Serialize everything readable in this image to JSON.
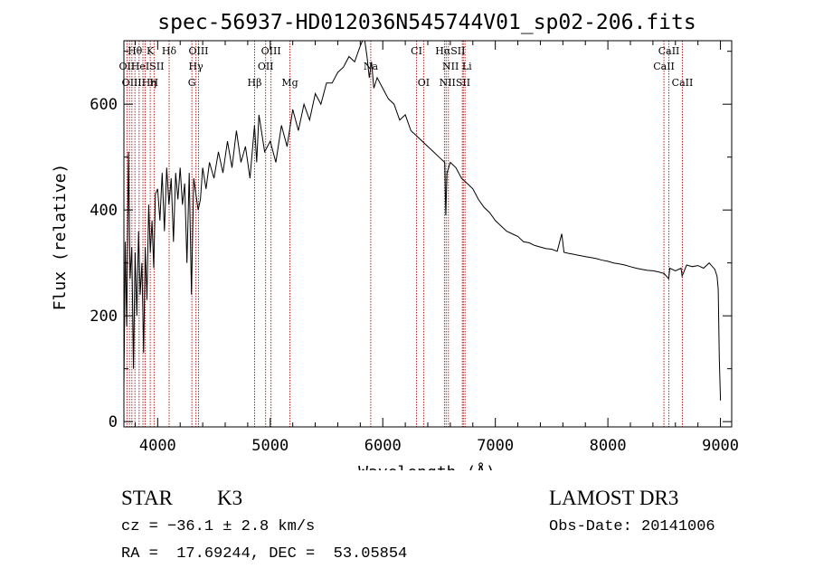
{
  "chart_data": {
    "type": "line",
    "title": "spec-56937-HD012036N545744V01_sp02-206.fits",
    "xlabel": "Wavelength (Å)",
    "ylabel": "Flux (relative)",
    "xlim": [
      3700,
      9100
    ],
    "ylim": [
      -10,
      720
    ],
    "xticks": [
      4000,
      5000,
      6000,
      7000,
      8000,
      9000
    ],
    "xtick_labels": [
      "4000",
      "5000",
      "6000",
      "7000",
      "8000",
      "9000"
    ],
    "yticks": [
      0,
      200,
      400,
      600
    ],
    "ytick_labels": [
      "0",
      "200",
      "400",
      "600"
    ],
    "grid": false,
    "series": [
      {
        "name": "spectrum",
        "x": [
          3700,
          3712,
          3725,
          3740,
          3755,
          3770,
          3785,
          3800,
          3815,
          3830,
          3845,
          3860,
          3875,
          3890,
          3905,
          3920,
          3935,
          3950,
          3965,
          3980,
          4000,
          4020,
          4040,
          4060,
          4080,
          4100,
          4120,
          4140,
          4160,
          4180,
          4200,
          4220,
          4240,
          4260,
          4280,
          4300,
          4320,
          4340,
          4360,
          4380,
          4400,
          4430,
          4460,
          4500,
          4540,
          4580,
          4620,
          4660,
          4700,
          4740,
          4780,
          4820,
          4860,
          4880,
          4900,
          4950,
          5000,
          5050,
          5100,
          5150,
          5200,
          5250,
          5300,
          5350,
          5400,
          5450,
          5500,
          5550,
          5600,
          5650,
          5700,
          5750,
          5800,
          5820,
          5840,
          5860,
          5880,
          5900,
          5920,
          5950,
          6000,
          6050,
          6100,
          6150,
          6200,
          6250,
          6300,
          6350,
          6400,
          6450,
          6500,
          6550,
          6560,
          6570,
          6600,
          6650,
          6700,
          6750,
          6800,
          6850,
          6900,
          6950,
          7000,
          7050,
          7100,
          7150,
          7200,
          7250,
          7300,
          7350,
          7400,
          7450,
          7500,
          7550,
          7590,
          7610,
          7650,
          7700,
          7750,
          7800,
          7850,
          7900,
          7950,
          8000,
          8050,
          8100,
          8150,
          8200,
          8250,
          8300,
          8350,
          8400,
          8450,
          8500,
          8540,
          8550,
          8600,
          8650,
          8660,
          8700,
          8750,
          8800,
          8850,
          8900,
          8950,
          8970,
          8980,
          8990,
          9000
        ],
        "values": [
          60,
          340,
          180,
          510,
          270,
          330,
          100,
          320,
          200,
          360,
          240,
          300,
          130,
          330,
          230,
          410,
          320,
          380,
          290,
          430,
          440,
          380,
          470,
          360,
          480,
          410,
          460,
          340,
          470,
          420,
          480,
          410,
          450,
          300,
          470,
          240,
          460,
          430,
          400,
          420,
          480,
          440,
          490,
          460,
          510,
          470,
          530,
          480,
          550,
          490,
          520,
          460,
          560,
          490,
          580,
          510,
          530,
          490,
          560,
          520,
          590,
          550,
          600,
          570,
          620,
          600,
          640,
          640,
          660,
          670,
          690,
          680,
          710,
          740,
          720,
          690,
          650,
          680,
          630,
          650,
          630,
          610,
          600,
          570,
          580,
          550,
          540,
          530,
          520,
          510,
          500,
          490,
          390,
          470,
          490,
          480,
          460,
          450,
          440,
          420,
          405,
          395,
          380,
          370,
          360,
          355,
          350,
          340,
          338,
          333,
          330,
          327,
          326,
          322,
          355,
          320,
          318,
          316,
          314,
          312,
          310,
          308,
          305,
          303,
          300,
          298,
          296,
          293,
          290,
          288,
          286,
          285,
          283,
          280,
          270,
          290,
          285,
          290,
          275,
          296,
          293,
          295,
          290,
          300,
          288,
          275,
          250,
          120,
          40
        ]
      }
    ],
    "line_labels": [
      {
        "text": "Hθ",
        "x": 3798,
        "row": 1
      },
      {
        "text": "K",
        "x": 3934,
        "row": 1
      },
      {
        "text": "Hδ",
        "x": 4102,
        "row": 1
      },
      {
        "text": "OIII",
        "x": 4363,
        "row": 1
      },
      {
        "text": "OIII",
        "x": 5007,
        "row": 1
      },
      {
        "text": "CI",
        "x": 6300,
        "row": 1
      },
      {
        "text": "HαSII",
        "x": 6600,
        "row": 1
      },
      {
        "text": "CaII",
        "x": 8542,
        "row": 1
      },
      {
        "text": "OII",
        "x": 3727,
        "row": 2
      },
      {
        "text": "HeISII",
        "x": 3910,
        "row": 2
      },
      {
        "text": "Hγ",
        "x": 4340,
        "row": 2
      },
      {
        "text": "OII",
        "x": 4959,
        "row": 2
      },
      {
        "text": "Na",
        "x": 5893,
        "row": 2
      },
      {
        "text": "NII Li",
        "x": 6660,
        "row": 2
      },
      {
        "text": "CaII",
        "x": 8498,
        "row": 2
      },
      {
        "text": "OIIIHη",
        "x": 3835,
        "row": 3
      },
      {
        "text": "H",
        "x": 3968,
        "row": 3
      },
      {
        "text": "G",
        "x": 4304,
        "row": 3
      },
      {
        "text": "Hβ",
        "x": 4861,
        "row": 3
      },
      {
        "text": "Mg",
        "x": 5175,
        "row": 3
      },
      {
        "text": "OI",
        "x": 6363,
        "row": 3
      },
      {
        "text": "NIISII",
        "x": 6640,
        "row": 3
      },
      {
        "text": "CaII",
        "x": 8662,
        "row": 3
      }
    ],
    "reference_lines_x": [
      3727,
      3750,
      3771,
      3798,
      3835,
      3869,
      3889,
      3934,
      3968,
      4102,
      4304,
      4340,
      4363,
      4861,
      4959,
      5007,
      5175,
      5893,
      6300,
      6363,
      6548,
      6563,
      6583,
      6707,
      6716,
      6731,
      8498,
      8542,
      8662
    ]
  },
  "info": {
    "object": "STAR",
    "subclass": "K3",
    "survey": "LAMOST DR3",
    "cz": "cz = −36.1 ± 2.8 km/s",
    "obs_date": "Obs-Date: 20141006",
    "radec": "RA =  17.69244, DEC =  53.05854"
  },
  "colors": {
    "axis": "#000000",
    "spectrum": "#000000",
    "ref_line": "#b22222"
  }
}
